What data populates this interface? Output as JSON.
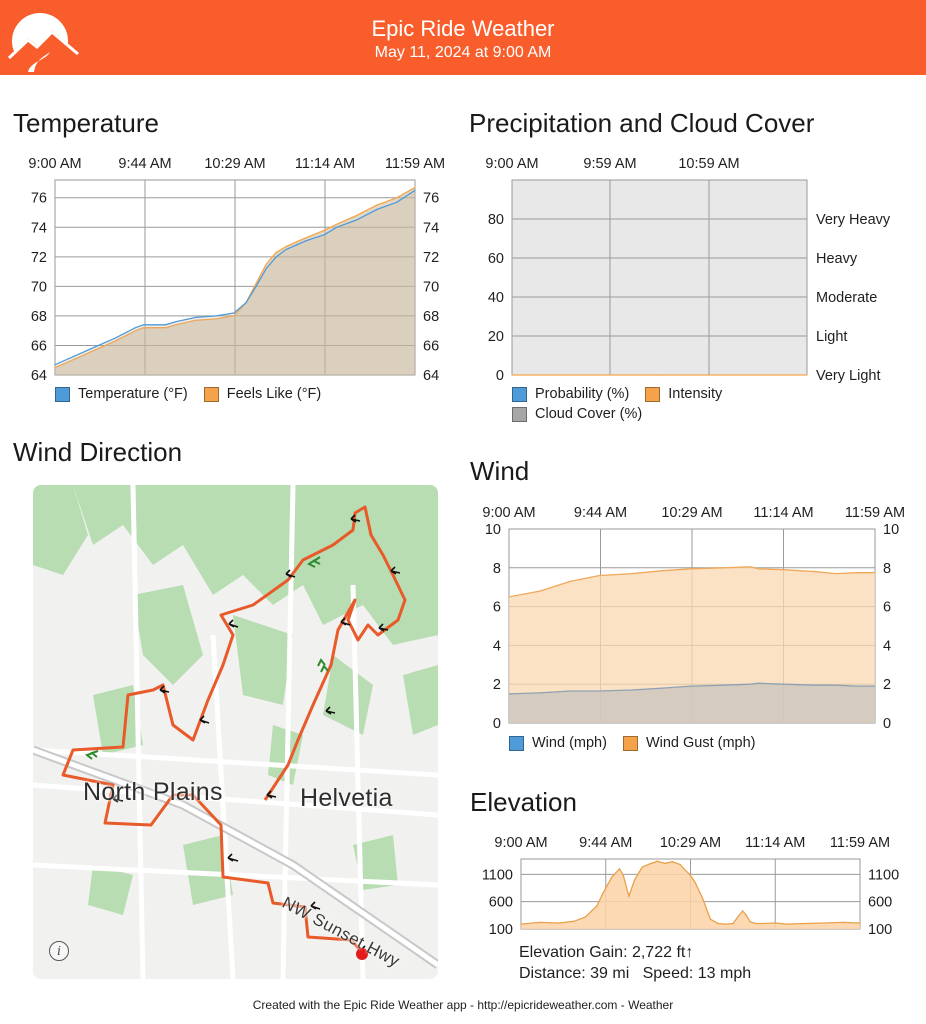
{
  "header": {
    "title": "Epic Ride Weather",
    "subtitle": "May 11, 2024 at 9:00 AM",
    "brand_color": "#f85d2b"
  },
  "temperature": {
    "title": "Temperature",
    "chart_data": {
      "type": "area",
      "x_tick_labels": [
        "9:00 AM",
        "9:44 AM",
        "10:29 AM",
        "11:14 AM",
        "11:59 AM"
      ],
      "y_ticks": [
        64,
        66,
        68,
        70,
        72,
        74,
        76
      ],
      "ylim": [
        64,
        77.2
      ],
      "grid": true,
      "x_minutes": [
        0,
        10,
        20,
        30,
        40,
        44,
        50,
        55,
        60,
        70,
        80,
        89,
        95,
        100,
        105,
        110,
        115,
        120,
        125,
        134,
        140,
        150,
        160,
        170,
        179
      ],
      "series": [
        {
          "name": "Temperature (°F)",
          "color": "#4f9ad8",
          "values": [
            64.7,
            65.3,
            65.9,
            66.5,
            67.2,
            67.4,
            67.4,
            67.4,
            67.6,
            67.9,
            68.0,
            68.2,
            68.9,
            70.0,
            71.2,
            72.0,
            72.5,
            72.8,
            73.1,
            73.5,
            74.0,
            74.5,
            75.2,
            75.7,
            76.5
          ]
        },
        {
          "name": "Feels Like (°F)",
          "color": "#f5a34a",
          "values": [
            64.5,
            65.1,
            65.7,
            66.3,
            67.0,
            67.2,
            67.2,
            67.2,
            67.4,
            67.7,
            67.8,
            68.0,
            68.9,
            70.2,
            71.5,
            72.3,
            72.7,
            73.0,
            73.3,
            73.8,
            74.2,
            74.8,
            75.5,
            76.0,
            76.7
          ]
        }
      ]
    }
  },
  "precipitation": {
    "title": "Precipitation and Cloud Cover",
    "chart_data": {
      "type": "area",
      "x_tick_labels": [
        "9:00 AM",
        "9:59 AM",
        "10:59 AM"
      ],
      "y_ticks": [
        0,
        20,
        40,
        60,
        80
      ],
      "ylim": [
        0,
        100
      ],
      "intensity_labels": [
        "Very Light",
        "Light",
        "Moderate",
        "Heavy",
        "Very Heavy"
      ],
      "grid": true,
      "series": [
        {
          "name": "Probability (%)",
          "color": "#4f9ad8",
          "values": [
            0,
            0,
            0
          ]
        },
        {
          "name": "Intensity",
          "color": "#f5a34a",
          "values": [
            0,
            0,
            0
          ]
        },
        {
          "name": "Cloud Cover (%)",
          "color": "#a6a6a6",
          "values": [
            0,
            0,
            0
          ]
        }
      ]
    }
  },
  "wind_map": {
    "title": "Wind Direction",
    "places": [
      "North Plains",
      "Helvetia"
    ],
    "highway": "NW Sunset Hwy",
    "info_icon": "info-icon"
  },
  "wind": {
    "title": "Wind",
    "chart_data": {
      "type": "area",
      "x_tick_labels": [
        "9:00 AM",
        "9:44 AM",
        "10:29 AM",
        "11:14 AM",
        "11:59 AM"
      ],
      "y_ticks": [
        0,
        2,
        4,
        6,
        8,
        10
      ],
      "ylim": [
        0,
        10
      ],
      "grid": true,
      "x_minutes": [
        0,
        15,
        30,
        44,
        60,
        75,
        89,
        105,
        118,
        122,
        134,
        150,
        160,
        170,
        179
      ],
      "series": [
        {
          "name": "Wind (mph)",
          "color": "#4f9ad8",
          "values": [
            1.5,
            1.55,
            1.65,
            1.65,
            1.7,
            1.8,
            1.9,
            1.95,
            2.0,
            2.05,
            2.0,
            1.95,
            1.95,
            1.9,
            1.9
          ]
        },
        {
          "name": "Wind Gust (mph)",
          "color": "#f5a34a",
          "values": [
            6.5,
            6.8,
            7.3,
            7.6,
            7.7,
            7.85,
            7.95,
            8.0,
            8.05,
            7.95,
            7.9,
            7.8,
            7.7,
            7.75,
            7.75
          ]
        }
      ]
    }
  },
  "elevation": {
    "title": "Elevation",
    "chart_data": {
      "type": "area",
      "x_tick_labels": [
        "9:00 AM",
        "9:44 AM",
        "10:29 AM",
        "11:14 AM",
        "11:59 AM"
      ],
      "y_ticks": [
        100,
        600,
        1100
      ],
      "ylim": [
        100,
        1380
      ],
      "grid": true,
      "color": "#f5a34a",
      "x_minutes": [
        0,
        10,
        20,
        28,
        34,
        40,
        44,
        48,
        52,
        54,
        57,
        60,
        64,
        68,
        72,
        76,
        80,
        84,
        86,
        89,
        92,
        96,
        100,
        104,
        108,
        112,
        114,
        117,
        119,
        121,
        124,
        128,
        134,
        140,
        150,
        160,
        170,
        179
      ],
      "values": [
        190,
        220,
        210,
        240,
        320,
        520,
        800,
        1050,
        1200,
        1080,
        700,
        1000,
        1230,
        1290,
        1340,
        1300,
        1330,
        1280,
        1200,
        1100,
        950,
        650,
        280,
        200,
        190,
        200,
        300,
        430,
        350,
        230,
        200,
        200,
        210,
        190,
        200,
        210,
        220,
        210
      ]
    },
    "stats": {
      "gain": "Elevation Gain: 2,722 ft↑",
      "distance": "Distance: 39 mi",
      "speed": "Speed: 13 mph"
    }
  },
  "footer": {
    "text": "Created with the Epic Ride Weather app - http://epicrideweather.com - ",
    "weather_label": "Weather"
  }
}
